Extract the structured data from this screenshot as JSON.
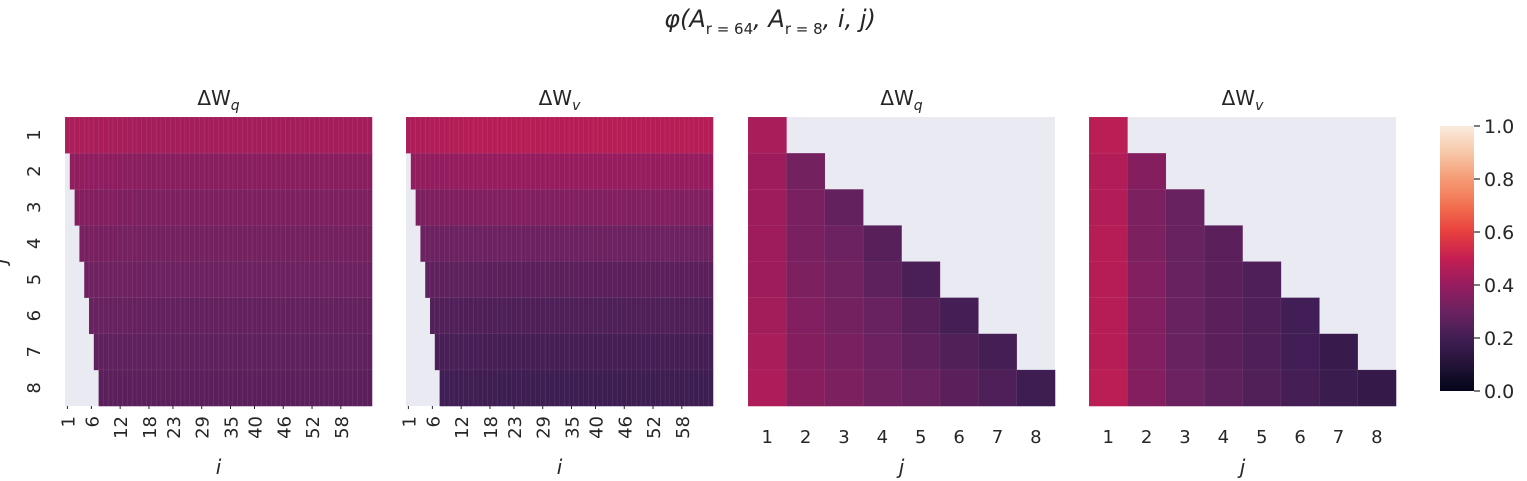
{
  "figure": {
    "suptitle": "φ(A",
    "suptitle_sub1": "r = 64",
    "suptitle_mid": ", A",
    "suptitle_sub2": "r = 8",
    "suptitle_end": ", i, j)"
  },
  "colorbar": {
    "ticks": [
      "0.0",
      "0.2",
      "0.4",
      "0.6",
      "0.8",
      "1.0"
    ],
    "vmin": 0.0,
    "vmax": 1.0,
    "colormap": "rocket"
  },
  "colors": {
    "panel_background": "#eaeaf2",
    "text": "#262626"
  },
  "chart_data": [
    {
      "type": "heatmap",
      "title": "ΔW",
      "title_sub": "q",
      "xlabel": "i",
      "ylabel": "j",
      "x_range": [
        1,
        64
      ],
      "xticks": [
        "1",
        "6",
        "12",
        "18",
        "23",
        "29",
        "35",
        "40",
        "46",
        "52",
        "58"
      ],
      "yticks": [
        "1",
        "2",
        "3",
        "4",
        "5",
        "6",
        "7",
        "8"
      ],
      "mask": "cell (i, j) shown only when i >= j",
      "row_values": [
        0.43,
        0.37,
        0.34,
        0.32,
        0.3,
        0.28,
        0.27,
        0.26
      ],
      "row_values_at_i_equals_j": [
        0.45,
        0.39,
        0.36,
        0.33,
        0.31,
        0.29,
        0.27,
        0.26
      ]
    },
    {
      "type": "heatmap",
      "title": "ΔW",
      "title_sub": "v",
      "xlabel": "i",
      "ylabel": "",
      "x_range": [
        1,
        64
      ],
      "xticks": [
        "1",
        "6",
        "12",
        "18",
        "23",
        "29",
        "35",
        "40",
        "46",
        "52",
        "58"
      ],
      "yticks": [],
      "mask": "cell (i, j) shown only when i >= j",
      "row_values": [
        0.47,
        0.4,
        0.35,
        0.3,
        0.26,
        0.23,
        0.21,
        0.19
      ],
      "row_values_at_i_equals_j": [
        0.45,
        0.39,
        0.34,
        0.3,
        0.27,
        0.24,
        0.22,
        0.2
      ]
    },
    {
      "type": "heatmap",
      "title": "ΔW",
      "title_sub": "q",
      "xlabel": "j",
      "ylabel": "",
      "xticks": [
        "1",
        "2",
        "3",
        "4",
        "5",
        "6",
        "7",
        "8"
      ],
      "yticks": [],
      "mask": "lower triangle, cell (x, y) shown only when x <= y",
      "values": [
        [
          0.44,
          null,
          null,
          null,
          null,
          null,
          null,
          null
        ],
        [
          0.42,
          0.32,
          null,
          null,
          null,
          null,
          null,
          null
        ],
        [
          0.42,
          0.33,
          0.28,
          null,
          null,
          null,
          null,
          null
        ],
        [
          0.42,
          0.33,
          0.3,
          0.25,
          null,
          null,
          null,
          null
        ],
        [
          0.42,
          0.34,
          0.31,
          0.27,
          0.22,
          null,
          null,
          null
        ],
        [
          0.43,
          0.35,
          0.32,
          0.29,
          0.25,
          0.21,
          null,
          null
        ],
        [
          0.44,
          0.36,
          0.33,
          0.3,
          0.27,
          0.24,
          0.21,
          null
        ],
        [
          0.45,
          0.37,
          0.34,
          0.31,
          0.29,
          0.26,
          0.23,
          0.19
        ]
      ]
    },
    {
      "type": "heatmap",
      "title": "ΔW",
      "title_sub": "v",
      "xlabel": "j",
      "ylabel": "",
      "xticks": [
        "1",
        "2",
        "3",
        "4",
        "5",
        "6",
        "7",
        "8"
      ],
      "yticks": [],
      "mask": "lower triangle, cell (x, y) shown only when x <= y",
      "values": [
        [
          0.48,
          null,
          null,
          null,
          null,
          null,
          null,
          null
        ],
        [
          0.46,
          0.36,
          null,
          null,
          null,
          null,
          null,
          null
        ],
        [
          0.46,
          0.34,
          0.29,
          null,
          null,
          null,
          null,
          null
        ],
        [
          0.47,
          0.34,
          0.29,
          0.26,
          null,
          null,
          null,
          null
        ],
        [
          0.47,
          0.35,
          0.29,
          0.26,
          0.23,
          null,
          null,
          null
        ],
        [
          0.47,
          0.35,
          0.29,
          0.26,
          0.23,
          0.2,
          null,
          null
        ],
        [
          0.47,
          0.35,
          0.29,
          0.26,
          0.23,
          0.2,
          0.17,
          null
        ],
        [
          0.48,
          0.36,
          0.3,
          0.27,
          0.24,
          0.21,
          0.18,
          0.16
        ]
      ]
    }
  ]
}
